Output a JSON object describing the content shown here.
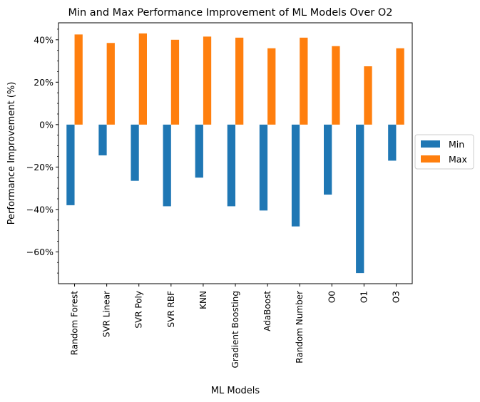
{
  "chart_data": {
    "type": "bar",
    "title": "Min and Max Performance Improvement of ML Models Over O2",
    "xlabel": "ML Models",
    "ylabel": "Performance Improvement (%)",
    "categories": [
      "Random Forest",
      "SVR Linear",
      "SVR Poly",
      "SVR RBF",
      "KNN",
      "Gradient Boosting",
      "AdaBoost",
      "Random Number",
      "O0",
      "O1",
      "O3"
    ],
    "series": [
      {
        "name": "Min",
        "color": "#1f77b4",
        "values": [
          -38,
          -14.5,
          -26.5,
          -38.5,
          -25,
          -38.5,
          -40.5,
          -48,
          -33,
          -70,
          -17
        ]
      },
      {
        "name": "Max",
        "color": "#ff7f0e",
        "values": [
          42.5,
          38.5,
          43,
          40,
          41.5,
          41,
          36,
          41,
          37,
          27.5,
          36
        ]
      }
    ],
    "ylim": [
      -75,
      48
    ],
    "yticks": [
      -60,
      -40,
      -20,
      0,
      20,
      40
    ],
    "ytick_labels": [
      "−60%",
      "−40%",
      "−20%",
      "0%",
      "20%",
      "40%"
    ],
    "legend_position": "center-right",
    "grid": false
  }
}
